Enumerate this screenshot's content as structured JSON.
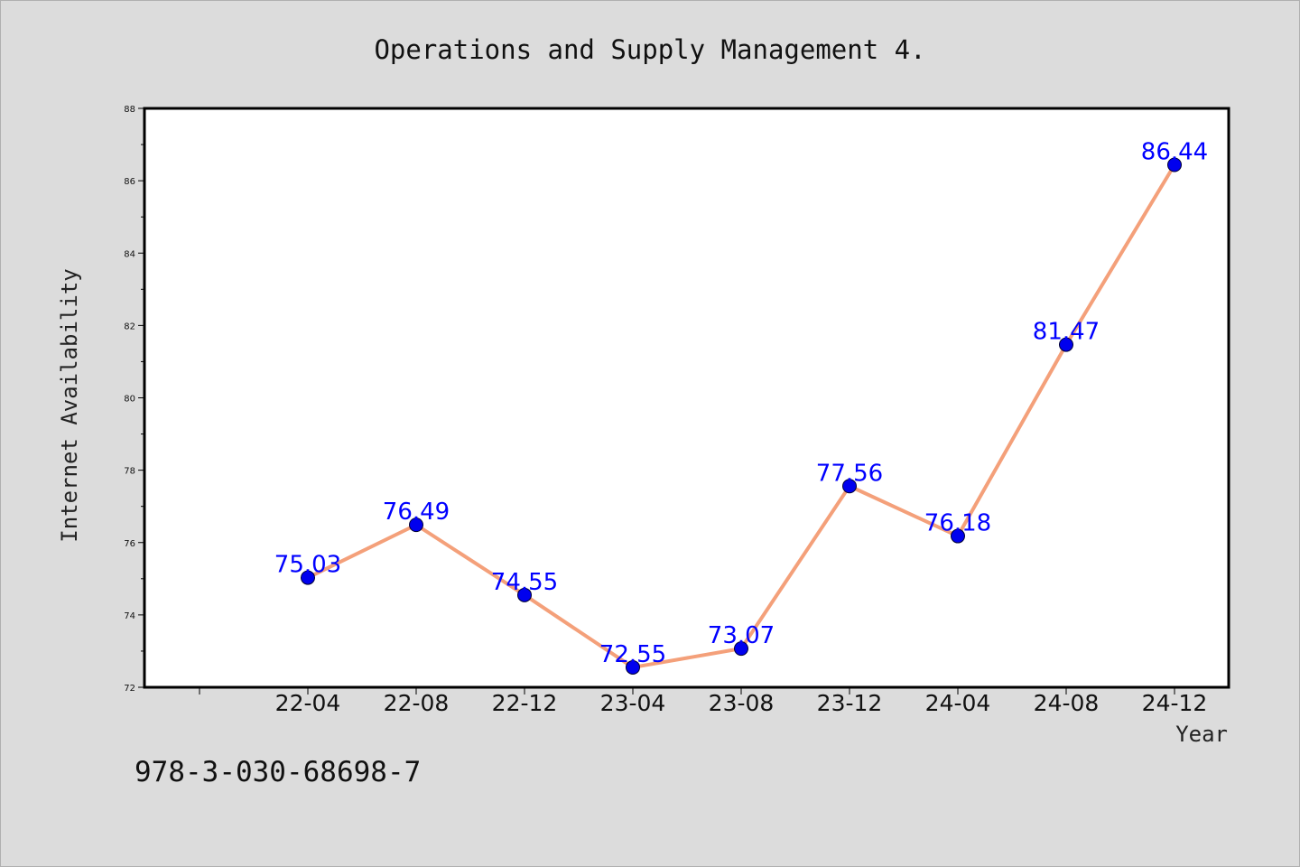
{
  "chart_data": {
    "type": "line",
    "title": "Operations and Supply Management 4.",
    "xlabel": "Year",
    "ylabel": "Internet Availability",
    "categories": [
      "22-04",
      "22-08",
      "22-12",
      "23-04",
      "23-08",
      "23-12",
      "24-04",
      "24-08",
      "24-12"
    ],
    "series": [
      {
        "values": [
          75.03,
          76.49,
          74.55,
          72.55,
          73.07,
          77.56,
          76.18,
          81.47,
          86.44
        ],
        "data_labels": [
          "75.03",
          "76.49",
          "74.55",
          "72.55",
          "73.07",
          "77.56",
          "76.18",
          "81.47",
          "86.44"
        ],
        "line_color": "#f4a07a",
        "marker_color": "#0000ee"
      }
    ],
    "yticks": [
      "72",
      "74",
      "76",
      "78",
      "80",
      "82",
      "84",
      "86",
      "88"
    ],
    "ylim": [
      72,
      88
    ],
    "grid": false,
    "legend": "none"
  },
  "footer": {
    "isbn": "978-3-030-68698-7"
  }
}
